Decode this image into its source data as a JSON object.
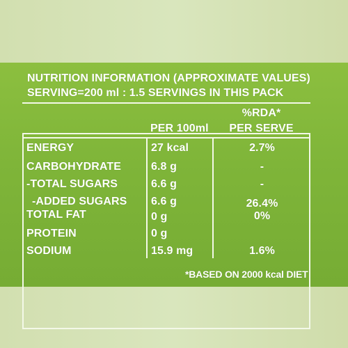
{
  "header": {
    "title": "NUTRITION INFORMATION (APPROXIMATE VALUES)",
    "serving": "SERVING=200 ml : 1.5 SERVINGS IN THIS PACK"
  },
  "columns": {
    "per100": "PER 100ml",
    "rda_line1": "%RDA*",
    "rda_line2": "PER SERVE"
  },
  "rows": [
    {
      "name": "ENERGY",
      "per100": "27  kcal",
      "rda": "2.7%"
    },
    {
      "name": "CARBOHYDRATE",
      "per100": "6.8 g",
      "rda": "-"
    },
    {
      "name": "-TOTAL SUGARS",
      "per100": "6.6 g",
      "rda": "-"
    },
    {
      "name": "-ADDED SUGARS",
      "per100": "6.6 g",
      "rda": "26.4%"
    },
    {
      "name": "TOTAL FAT",
      "per100": "0 g",
      "rda": "0%"
    },
    {
      "name": "PROTEIN",
      "per100": "0 g",
      "rda": ""
    },
    {
      "name": "SODIUM",
      "per100": "15.9  mg",
      "rda": "1.6%"
    }
  ],
  "footnote": "*BASED ON 2000 kcal DIET",
  "colors": {
    "label_green": "#7fb539",
    "background": "#d5e2b5",
    "text": "#ffffff"
  }
}
